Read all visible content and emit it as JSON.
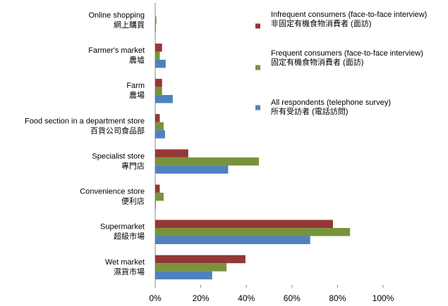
{
  "chart_data": {
    "type": "hbar",
    "categories": [
      "Online shopping",
      "Farmer's market",
      "Farm",
      "Food section in a department store",
      "Specialist store",
      "Convenience store",
      "Supermarket",
      "Wet market"
    ],
    "categories_zh": [
      "網上購買",
      "農墟",
      "農場",
      "百貨公司食品部",
      "專門店",
      "便利店",
      "超級市場",
      "濕貨市場"
    ],
    "series": [
      {
        "name": "Infrequent consumers (face-to-face interview)",
        "name_zh": "非固定有機食物消費者 (面訪)",
        "color": "#953735",
        "values": [
          0,
          3,
          3,
          2,
          14.5,
          2,
          78,
          39.6
        ]
      },
      {
        "name": "Frequent consumers (face-to-face interview)",
        "name_zh": "固定有機食物消費者 (面訪)",
        "color": "#77933c",
        "values": [
          0.5,
          2,
          3,
          3.7,
          45.5,
          3.7,
          85.5,
          31.3
        ]
      },
      {
        "name": "All respondents (telephone survey)",
        "name_zh": "所有受訪者 (電話訪問)",
        "color": "#4f81bd",
        "values": [
          0.3,
          4.6,
          7.7,
          4.3,
          32,
          0.3,
          68,
          25
        ]
      }
    ],
    "xlim": [
      0,
      100
    ],
    "xticks": [
      {
        "value": 0,
        "label": "0%"
      },
      {
        "value": 20,
        "label": "20%"
      },
      {
        "value": 40,
        "label": "40%"
      },
      {
        "value": 60,
        "label": "60%"
      },
      {
        "value": 80,
        "label": "80%"
      },
      {
        "value": 100,
        "label": "100%"
      }
    ],
    "grid": false
  }
}
